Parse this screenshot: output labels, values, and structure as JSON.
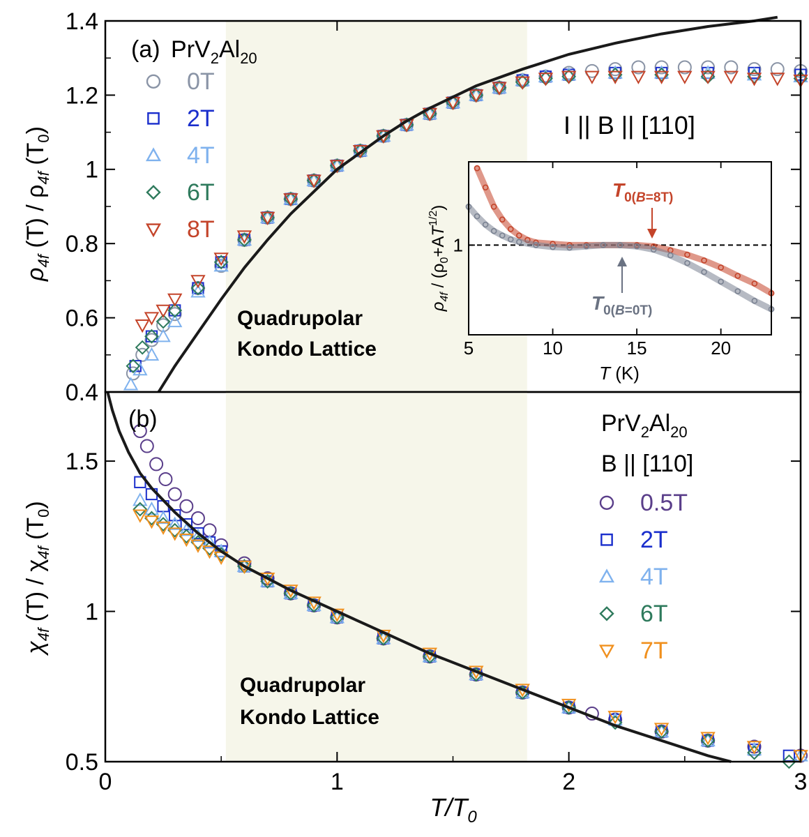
{
  "chart_data": [
    {
      "type": "scatter",
      "panel_label": "(a)",
      "compound": [
        "PrV",
        "2",
        "Al",
        "20"
      ],
      "field_direction": "I || B || [110]",
      "annotation": [
        "Quadrupolar",
        "Kondo Lattice"
      ],
      "ylabel": [
        "ρ",
        "4f",
        " (T) / ρ",
        "4f",
        " (T",
        "0",
        ")"
      ],
      "xlim": [
        0,
        3
      ],
      "ylim": [
        0.4,
        1.4
      ],
      "yticks": [
        "0.4",
        "0.6",
        "0.8",
        "1",
        "1.2",
        "1.4"
      ],
      "shaded_region": [
        0.52,
        1.82
      ],
      "fit_curve": {
        "color": "#1a1a1a",
        "x": [
          0.23,
          0.3,
          0.4,
          0.5,
          0.6,
          0.7,
          0.8,
          0.9,
          1.0,
          1.1,
          1.2,
          1.3,
          1.4,
          1.5,
          1.6,
          1.8,
          2.0,
          2.2,
          2.4,
          2.6,
          2.8,
          2.9
        ],
        "y": [
          0.4,
          0.47,
          0.56,
          0.65,
          0.735,
          0.81,
          0.88,
          0.94,
          1.0,
          1.045,
          1.09,
          1.13,
          1.165,
          1.195,
          1.225,
          1.27,
          1.31,
          1.34,
          1.365,
          1.385,
          1.4,
          1.41
        ]
      },
      "series": [
        {
          "name": "0T",
          "marker": "circle",
          "color": "#8a94a6",
          "x": [
            0.12,
            0.16,
            0.2,
            0.25,
            0.3,
            0.4,
            0.5,
            0.6,
            0.7,
            0.8,
            0.9,
            1.0,
            1.1,
            1.2,
            1.3,
            1.4,
            1.5,
            1.6,
            1.7,
            1.8,
            1.9,
            2.0,
            2.1,
            2.2,
            2.3,
            2.4,
            2.5,
            2.6,
            2.7,
            2.8,
            2.9,
            3.0
          ],
          "y": [
            0.45,
            0.5,
            0.54,
            0.58,
            0.61,
            0.68,
            0.74,
            0.81,
            0.87,
            0.92,
            0.97,
            1.01,
            1.05,
            1.09,
            1.12,
            1.15,
            1.18,
            1.2,
            1.22,
            1.24,
            1.25,
            1.26,
            1.265,
            1.27,
            1.275,
            1.275,
            1.275,
            1.275,
            1.275,
            1.27,
            1.27,
            1.265
          ]
        },
        {
          "name": "2T",
          "marker": "square",
          "color": "#1a2ecc",
          "x": [
            0.13,
            0.2,
            0.3,
            0.4,
            0.5,
            0.6,
            0.7,
            0.8,
            0.9,
            1.0,
            1.1,
            1.2,
            1.3,
            1.4,
            1.5,
            1.6,
            1.7,
            1.8,
            1.9,
            2.0,
            2.2,
            2.4,
            2.6,
            2.8,
            3.0
          ],
          "y": [
            0.47,
            0.55,
            0.62,
            0.68,
            0.75,
            0.81,
            0.87,
            0.92,
            0.97,
            1.01,
            1.05,
            1.09,
            1.12,
            1.15,
            1.18,
            1.2,
            1.22,
            1.24,
            1.25,
            1.255,
            1.26,
            1.26,
            1.26,
            1.26,
            1.255
          ]
        },
        {
          "name": "4T",
          "marker": "triangle-up",
          "color": "#7fb2ee",
          "x": [
            0.11,
            0.15,
            0.2,
            0.25,
            0.3,
            0.4,
            0.5,
            0.6,
            0.7,
            0.8,
            0.9,
            1.0,
            1.1,
            1.2,
            1.3,
            1.4,
            1.5,
            1.6,
            1.7,
            1.8,
            1.9,
            2.0,
            2.2,
            2.4,
            2.6,
            2.8,
            3.0
          ],
          "y": [
            0.42,
            0.46,
            0.5,
            0.55,
            0.59,
            0.67,
            0.74,
            0.81,
            0.87,
            0.92,
            0.97,
            1.01,
            1.05,
            1.09,
            1.12,
            1.15,
            1.18,
            1.2,
            1.22,
            1.24,
            1.25,
            1.255,
            1.26,
            1.26,
            1.26,
            1.255,
            1.25
          ]
        },
        {
          "name": "6T",
          "marker": "diamond",
          "color": "#2e7a5c",
          "x": [
            0.12,
            0.16,
            0.2,
            0.25,
            0.3,
            0.4,
            0.5,
            0.6,
            0.7,
            0.8,
            0.9,
            1.0,
            1.1,
            1.2,
            1.3,
            1.4,
            1.5,
            1.6,
            1.7,
            1.8,
            1.9,
            2.0,
            2.2,
            2.4,
            2.6,
            2.8,
            3.0
          ],
          "y": [
            0.47,
            0.52,
            0.55,
            0.59,
            0.62,
            0.68,
            0.75,
            0.81,
            0.87,
            0.92,
            0.97,
            1.01,
            1.05,
            1.09,
            1.12,
            1.15,
            1.18,
            1.2,
            1.22,
            1.235,
            1.245,
            1.25,
            1.255,
            1.255,
            1.25,
            1.25,
            1.245
          ]
        },
        {
          "name": "8T",
          "marker": "triangle-down",
          "color": "#c4442a",
          "x": [
            0.16,
            0.2,
            0.25,
            0.3,
            0.4,
            0.5,
            0.6,
            0.7,
            0.8,
            0.9,
            1.0,
            1.1,
            1.2,
            1.3,
            1.4,
            1.5,
            1.6,
            1.7,
            1.8,
            1.9,
            2.0,
            2.1,
            2.2,
            2.3,
            2.4,
            2.5,
            2.6,
            2.7,
            2.8,
            2.9,
            3.0
          ],
          "y": [
            0.58,
            0.6,
            0.62,
            0.65,
            0.7,
            0.76,
            0.82,
            0.87,
            0.92,
            0.97,
            1.01,
            1.05,
            1.09,
            1.12,
            1.15,
            1.18,
            1.2,
            1.22,
            1.235,
            1.245,
            1.25,
            1.25,
            1.25,
            1.25,
            1.25,
            1.25,
            1.25,
            1.25,
            1.245,
            1.245,
            1.24
          ]
        }
      ]
    },
    {
      "type": "scatter",
      "panel_label": "(b)",
      "compound": [
        "PrV",
        "2",
        "Al",
        "20"
      ],
      "field_direction": "B || [110]",
      "annotation": [
        "Quadrupolar",
        "Kondo Lattice"
      ],
      "ylabel": [
        "χ",
        "4f",
        " (T) / χ",
        "4f",
        " (T",
        "0",
        ")"
      ],
      "xlabel": [
        "T/T",
        "0"
      ],
      "xlim": [
        0,
        3
      ],
      "ylim": [
        0.5,
        1.73
      ],
      "xticks": [
        "0",
        "1",
        "2",
        "3"
      ],
      "yticks": [
        "0.5",
        "1",
        "1.5"
      ],
      "shaded_region": [
        0.52,
        1.82
      ],
      "fit_curve": {
        "color": "#1a1a1a",
        "x": [
          0.01,
          0.03,
          0.06,
          0.1,
          0.15,
          0.2,
          0.3,
          0.4,
          0.5,
          0.6,
          0.8,
          1.0,
          1.2,
          1.4,
          1.6,
          1.8,
          2.0,
          2.2,
          2.4,
          2.6,
          2.7
        ],
        "y": [
          1.73,
          1.67,
          1.6,
          1.53,
          1.46,
          1.41,
          1.33,
          1.26,
          1.2,
          1.15,
          1.07,
          1.0,
          0.93,
          0.86,
          0.8,
          0.74,
          0.68,
          0.62,
          0.57,
          0.52,
          0.5
        ]
      },
      "series": [
        {
          "name": "0.5T",
          "marker": "circle",
          "color": "#5a3e8a",
          "x": [
            0.15,
            0.18,
            0.22,
            0.26,
            0.3,
            0.35,
            0.4,
            0.45,
            0.5,
            0.6,
            0.7,
            0.8,
            0.9,
            1.0,
            1.2,
            1.4,
            1.6,
            1.8,
            2.0,
            2.1,
            2.2,
            2.4,
            2.6,
            2.8,
            3.0
          ],
          "y": [
            1.6,
            1.55,
            1.49,
            1.44,
            1.39,
            1.35,
            1.31,
            1.27,
            1.22,
            1.16,
            1.11,
            1.06,
            1.02,
            0.98,
            0.91,
            0.85,
            0.79,
            0.73,
            0.68,
            0.66,
            0.64,
            0.6,
            0.57,
            0.55,
            0.52
          ]
        },
        {
          "name": "2T",
          "marker": "square",
          "color": "#1a2ecc",
          "x": [
            0.15,
            0.2,
            0.25,
            0.3,
            0.35,
            0.4,
            0.45,
            0.5,
            0.6,
            0.7,
            0.8,
            0.9,
            1.0,
            1.2,
            1.4,
            1.6,
            1.8,
            2.0,
            2.2,
            2.4,
            2.6,
            2.8,
            2.95
          ],
          "y": [
            1.43,
            1.39,
            1.35,
            1.32,
            1.29,
            1.26,
            1.23,
            1.2,
            1.15,
            1.1,
            1.06,
            1.02,
            0.98,
            0.91,
            0.85,
            0.79,
            0.73,
            0.68,
            0.64,
            0.6,
            0.57,
            0.54,
            0.52
          ]
        },
        {
          "name": "4T",
          "marker": "triangle-up",
          "color": "#7fb2ee",
          "x": [
            0.15,
            0.2,
            0.25,
            0.3,
            0.35,
            0.4,
            0.45,
            0.5,
            0.6,
            0.7,
            0.8,
            0.9,
            1.0,
            1.2,
            1.4,
            1.6,
            1.8,
            2.0,
            2.2,
            2.4,
            2.6,
            2.8,
            3.0
          ],
          "y": [
            1.37,
            1.34,
            1.31,
            1.29,
            1.27,
            1.25,
            1.23,
            1.2,
            1.15,
            1.1,
            1.06,
            1.02,
            0.98,
            0.91,
            0.85,
            0.79,
            0.73,
            0.68,
            0.64,
            0.6,
            0.57,
            0.54,
            0.52
          ]
        },
        {
          "name": "6T",
          "marker": "diamond",
          "color": "#2e7a5c",
          "x": [
            0.15,
            0.2,
            0.25,
            0.3,
            0.35,
            0.4,
            0.45,
            0.5,
            0.6,
            0.7,
            0.8,
            0.9,
            1.0,
            1.2,
            1.4,
            1.6,
            1.8,
            2.0,
            2.2,
            2.4,
            2.6,
            2.8,
            2.95
          ],
          "y": [
            1.34,
            1.31,
            1.29,
            1.27,
            1.25,
            1.23,
            1.21,
            1.19,
            1.15,
            1.1,
            1.06,
            1.02,
            0.98,
            0.91,
            0.85,
            0.79,
            0.73,
            0.68,
            0.63,
            0.6,
            0.57,
            0.53,
            0.5
          ]
        },
        {
          "name": "7T",
          "marker": "triangle-down",
          "color": "#f0901e",
          "x": [
            0.15,
            0.2,
            0.25,
            0.3,
            0.35,
            0.4,
            0.45,
            0.5,
            0.6,
            0.7,
            0.8,
            0.9,
            1.0,
            1.2,
            1.4,
            1.6,
            1.8,
            2.0,
            2.2,
            2.4,
            2.6,
            2.8,
            3.0
          ],
          "y": [
            1.32,
            1.3,
            1.28,
            1.26,
            1.24,
            1.22,
            1.2,
            1.18,
            1.15,
            1.11,
            1.07,
            1.03,
            0.99,
            0.92,
            0.86,
            0.8,
            0.74,
            0.69,
            0.65,
            0.61,
            0.58,
            0.55,
            0.52
          ]
        }
      ]
    },
    {
      "type": "scatter",
      "panel": "inset",
      "ylabel": [
        "ρ",
        "4f",
        " / (ρ",
        "0",
        "+A",
        "T",
        "1/2",
        ")"
      ],
      "xlabel": [
        "T",
        " (K)"
      ],
      "xlim": [
        5,
        23
      ],
      "ylim": [
        0.86,
        1.13
      ],
      "xticks": [
        "5",
        "10",
        "15",
        "20"
      ],
      "yticks": [
        "1"
      ],
      "reference_line": 1,
      "series": [
        {
          "name": "8T",
          "color": "#c4442a",
          "marker": "circle",
          "x": [
            5.5,
            6,
            6.5,
            7,
            7.5,
            8,
            8.5,
            9,
            10,
            11,
            12,
            13,
            14,
            15,
            16,
            17,
            18,
            19,
            20,
            21,
            22,
            23
          ],
          "y": [
            1.12,
            1.09,
            1.06,
            1.04,
            1.025,
            1.015,
            1.008,
            1.004,
            1.002,
            1.0,
            1.0,
            1.0,
            1.0,
            1.0,
            0.998,
            0.992,
            0.985,
            0.976,
            0.965,
            0.952,
            0.94,
            0.925
          ]
        },
        {
          "name": "0T",
          "color": "#7a8292",
          "marker": "circle",
          "x": [
            5,
            5.5,
            6,
            6.5,
            7,
            7.5,
            8,
            9,
            10,
            11,
            12,
            13,
            14,
            15,
            16,
            17,
            18,
            19,
            20,
            21,
            22,
            23
          ],
          "y": [
            1.06,
            1.045,
            1.032,
            1.022,
            1.015,
            1.009,
            1.005,
            1.0,
            0.997,
            0.996,
            0.998,
            1.0,
            1.0,
            0.998,
            0.993,
            0.984,
            0.972,
            0.958,
            0.943,
            0.928,
            0.913,
            0.9
          ]
        }
      ],
      "marker_labels": [
        {
          "text": [
            "T",
            "0(",
            "B",
            "=8T)"
          ],
          "color": "#c4442a",
          "x": 16
        },
        {
          "text": [
            "T",
            "0(",
            "B",
            "=0T)"
          ],
          "color": "#6a7282",
          "x": 14.4
        }
      ]
    }
  ]
}
